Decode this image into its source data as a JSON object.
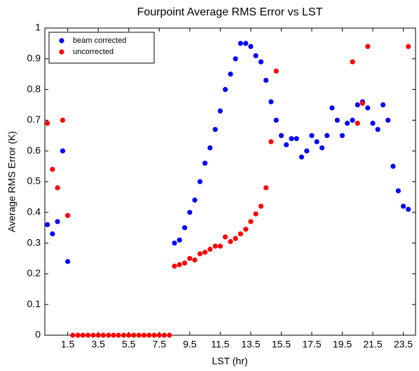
{
  "chart_data": {
    "type": "scatter",
    "title": "Fourpoint Average RMS Error vs LST",
    "x_label": "LST (hr)",
    "y_label": "Average RMS Error (K)",
    "xlim": [
      0,
      24.3
    ],
    "ylim": [
      0,
      1
    ],
    "xticks": [
      1.5,
      3.5,
      5.5,
      7.5,
      9.5,
      11.5,
      13.5,
      15.5,
      17.5,
      19.5,
      21.5,
      23.5
    ],
    "yticks": [
      0,
      0.1,
      0.2,
      0.3,
      0.4,
      0.5,
      0.6,
      0.7,
      0.8,
      0.9,
      1
    ],
    "grid": false,
    "legend": "upper left",
    "series": [
      {
        "name": "beam corrected",
        "color": "#0000ff",
        "x": [
          0.17,
          0.5,
          0.83,
          1.17,
          1.5,
          8.5,
          8.83,
          9.17,
          9.5,
          9.83,
          10.17,
          10.5,
          10.83,
          11.17,
          11.5,
          11.83,
          12.17,
          12.5,
          12.83,
          13.17,
          13.5,
          13.83,
          14.17,
          14.5,
          14.83,
          15.17,
          15.5,
          15.83,
          16.17,
          16.5,
          16.83,
          17.17,
          17.5,
          17.83,
          18.17,
          18.5,
          18.83,
          19.17,
          19.5,
          19.83,
          20.17,
          20.5,
          20.83,
          21.17,
          21.5,
          21.83,
          22.17,
          22.5,
          22.83,
          23.17,
          23.5,
          23.83
        ],
        "values": [
          0.36,
          0.33,
          0.37,
          0.6,
          0.24,
          0.3,
          0.31,
          0.35,
          0.4,
          0.44,
          0.5,
          0.56,
          0.61,
          0.67,
          0.73,
          0.8,
          0.85,
          0.9,
          0.95,
          0.95,
          0.94,
          0.91,
          0.89,
          0.83,
          0.76,
          0.7,
          0.65,
          0.62,
          0.64,
          0.64,
          0.58,
          0.6,
          0.65,
          0.63,
          0.61,
          0.65,
          0.74,
          0.7,
          0.65,
          0.69,
          0.7,
          0.75,
          0.76,
          0.74,
          0.69,
          0.67,
          0.75,
          0.7,
          0.55,
          0.47,
          0.42,
          0.41
        ]
      },
      {
        "name": "uncorrected",
        "color": "#ff0000",
        "x": [
          0.17,
          0.5,
          0.83,
          1.17,
          1.5,
          1.83,
          2.17,
          2.5,
          2.83,
          3.17,
          3.5,
          3.83,
          4.17,
          4.5,
          4.83,
          5.17,
          5.5,
          5.83,
          6.17,
          6.5,
          6.83,
          7.17,
          7.5,
          7.83,
          8.17,
          8.5,
          8.83,
          9.17,
          9.5,
          9.83,
          10.17,
          10.5,
          10.83,
          11.17,
          11.5,
          11.83,
          12.17,
          12.5,
          12.83,
          13.17,
          13.5,
          13.83,
          14.17,
          14.5,
          14.83,
          15.17,
          20.17,
          20.5,
          20.83,
          21.17,
          23.83
        ],
        "values": [
          0.69,
          0.54,
          0.48,
          0.7,
          0.39,
          0,
          0,
          0,
          0,
          0,
          0,
          0,
          0,
          0,
          0,
          0,
          0,
          0,
          0,
          0,
          0,
          0,
          0,
          0,
          0,
          0.225,
          0.23,
          0.235,
          0.25,
          0.245,
          0.265,
          0.27,
          0.28,
          0.29,
          0.29,
          0.32,
          0.305,
          0.315,
          0.33,
          0.345,
          0.37,
          0.395,
          0.42,
          0.48,
          0.63,
          0.86,
          0.89,
          0.69,
          0.755,
          0.94,
          0.94
        ]
      }
    ]
  }
}
